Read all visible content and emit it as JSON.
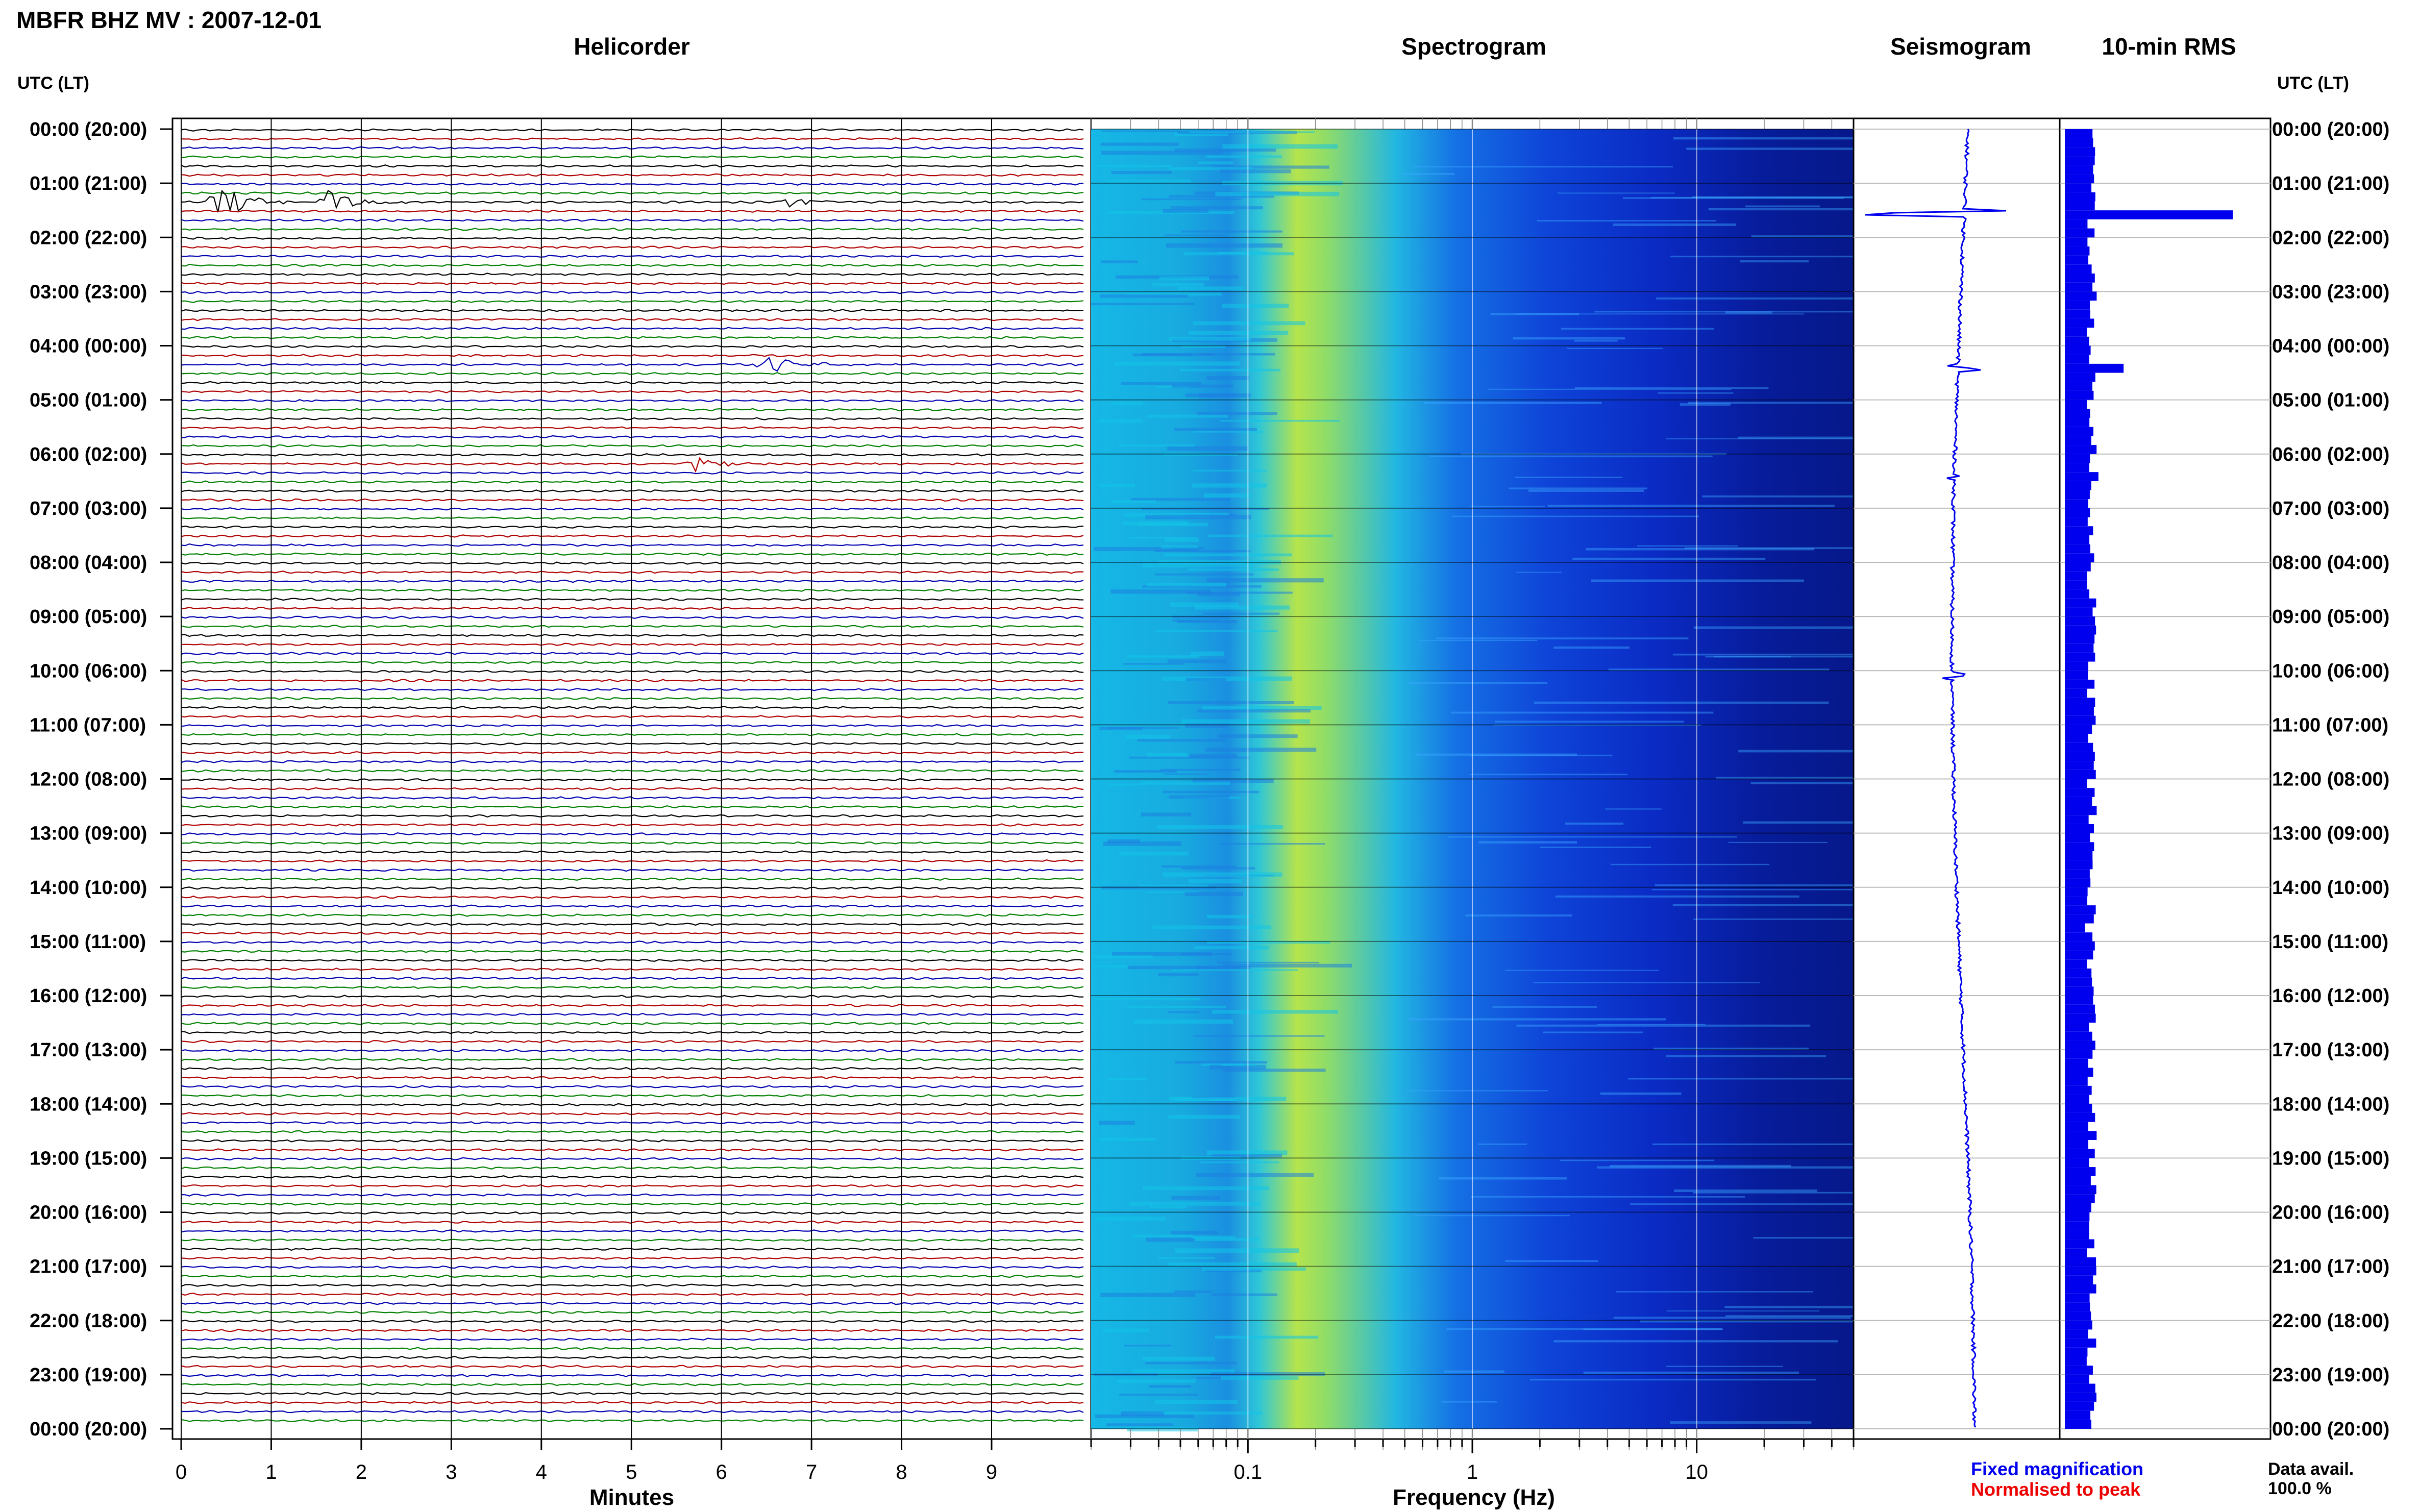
{
  "title": "MBFR BHZ MV : 2007-12-01",
  "panels": {
    "helicorder": "Helicorder",
    "spectrogram": "Spectrogram",
    "seismogram": "Seismogram",
    "rms": "10-min RMS"
  },
  "axis_header_left": "UTC (LT)",
  "axis_header_right": "UTC (LT)",
  "time_labels": [
    "00:00 (20:00)",
    "01:00 (21:00)",
    "02:00 (22:00)",
    "03:00 (23:00)",
    "04:00 (00:00)",
    "05:00 (01:00)",
    "06:00 (02:00)",
    "07:00 (03:00)",
    "08:00 (04:00)",
    "09:00 (05:00)",
    "10:00 (06:00)",
    "11:00 (07:00)",
    "12:00 (08:00)",
    "13:00 (09:00)",
    "14:00 (10:00)",
    "15:00 (11:00)",
    "16:00 (12:00)",
    "17:00 (13:00)",
    "18:00 (14:00)",
    "19:00 (15:00)",
    "20:00 (16:00)",
    "21:00 (17:00)",
    "22:00 (18:00)",
    "23:00 (19:00)",
    "00:00 (20:00)"
  ],
  "minute_ticks": [
    "0",
    "1",
    "2",
    "3",
    "4",
    "5",
    "6",
    "7",
    "8",
    "9"
  ],
  "minutes_label": "Minutes",
  "freq_ticks": [
    "0.1",
    "1",
    "10"
  ],
  "freq_label": "Frequency (Hz)",
  "legend": {
    "fixed": "Fixed magnification",
    "normalised": "Normalised to peak",
    "fixed_color": "#0000ee",
    "normalised_color": "#ee0000"
  },
  "data_avail_label": "Data avail.",
  "data_avail_value": "100.0 %",
  "trace_colors": [
    "#000000",
    "#b00000",
    "#0000b0",
    "#008000"
  ],
  "chart_data": [
    {
      "type": "line",
      "name": "helicorder",
      "xlabel": "Minutes",
      "xlim": [
        0,
        10
      ],
      "ylim_hours": [
        0,
        24
      ],
      "traces_per_hour": 6,
      "grid": true,
      "events": [
        {
          "hour": 1.33,
          "minute": 0.4,
          "amplitude": 1.0
        },
        {
          "hour": 1.33,
          "minute": 1.6,
          "amplitude": 0.6
        },
        {
          "hour": 1.33,
          "minute": 6.7,
          "amplitude": 0.3
        },
        {
          "hour": 4.33,
          "minute": 6.5,
          "amplitude": 0.5
        },
        {
          "hour": 6.17,
          "minute": 5.7,
          "amplitude": 0.35
        },
        {
          "hour": 14.67,
          "minute": 4.5,
          "amplitude": 0.15
        },
        {
          "hour": 16.5,
          "minute": 4.7,
          "amplitude": 0.1
        }
      ]
    },
    {
      "type": "heatmap",
      "name": "spectrogram",
      "xlabel": "Frequency (Hz)",
      "xscale": "log",
      "xlim": [
        0.02,
        50
      ],
      "ylim_hours": [
        0,
        24
      ],
      "peak_frequency_hz": 0.25
    },
    {
      "type": "line",
      "name": "seismogram",
      "ylim_hours": [
        0,
        24
      ],
      "spikes": [
        {
          "hour": 1.55,
          "amplitude": 1.0
        },
        {
          "hour": 4.4,
          "amplitude": 0.35
        },
        {
          "hour": 6.4,
          "amplitude": 0.15
        },
        {
          "hour": 10.1,
          "amplitude": 0.15
        }
      ]
    },
    {
      "type": "bar",
      "name": "10-min RMS",
      "bins_per_hour": 6,
      "ylim_hours": [
        0,
        24
      ],
      "grid": true,
      "notable": [
        {
          "hour": 1.5,
          "value": 1.0
        },
        {
          "hour": 4.33,
          "value": 0.35
        },
        {
          "hour": 6.33,
          "value": 0.2
        },
        {
          "hour": 14.67,
          "value": 0.12
        }
      ]
    }
  ]
}
